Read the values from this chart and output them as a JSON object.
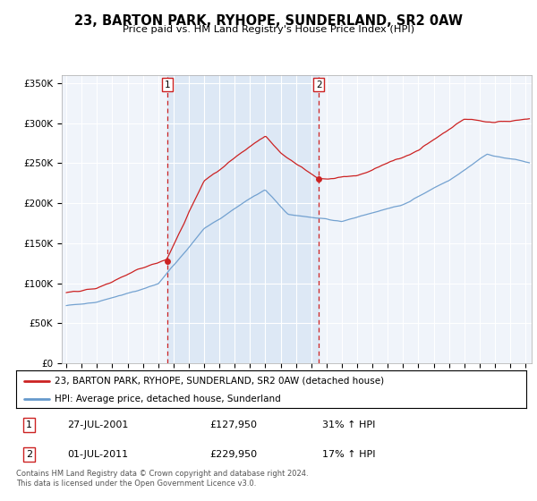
{
  "title": "23, BARTON PARK, RYHOPE, SUNDERLAND, SR2 0AW",
  "subtitle": "Price paid vs. HM Land Registry's House Price Index (HPI)",
  "legend_line1": "23, BARTON PARK, RYHOPE, SUNDERLAND, SR2 0AW (detached house)",
  "legend_line2": "HPI: Average price, detached house, Sunderland",
  "annotation1_date": "27-JUL-2001",
  "annotation1_price": "£127,950",
  "annotation1_hpi": "31% ↑ HPI",
  "annotation2_date": "01-JUL-2011",
  "annotation2_price": "£229,950",
  "annotation2_hpi": "17% ↑ HPI",
  "footnote": "Contains HM Land Registry data © Crown copyright and database right 2024.\nThis data is licensed under the Open Government Licence v3.0.",
  "red_color": "#cc2222",
  "blue_color": "#6699cc",
  "shade_color": "#dde8f5",
  "marker1_x": 2001.58,
  "marker1_y": 127950,
  "marker2_x": 2011.5,
  "marker2_y": 229950,
  "ylim": [
    0,
    360000
  ],
  "xlim": [
    1994.7,
    2025.4
  ],
  "grid_color": "#cccccc",
  "plot_bg": "#f0f4fa"
}
